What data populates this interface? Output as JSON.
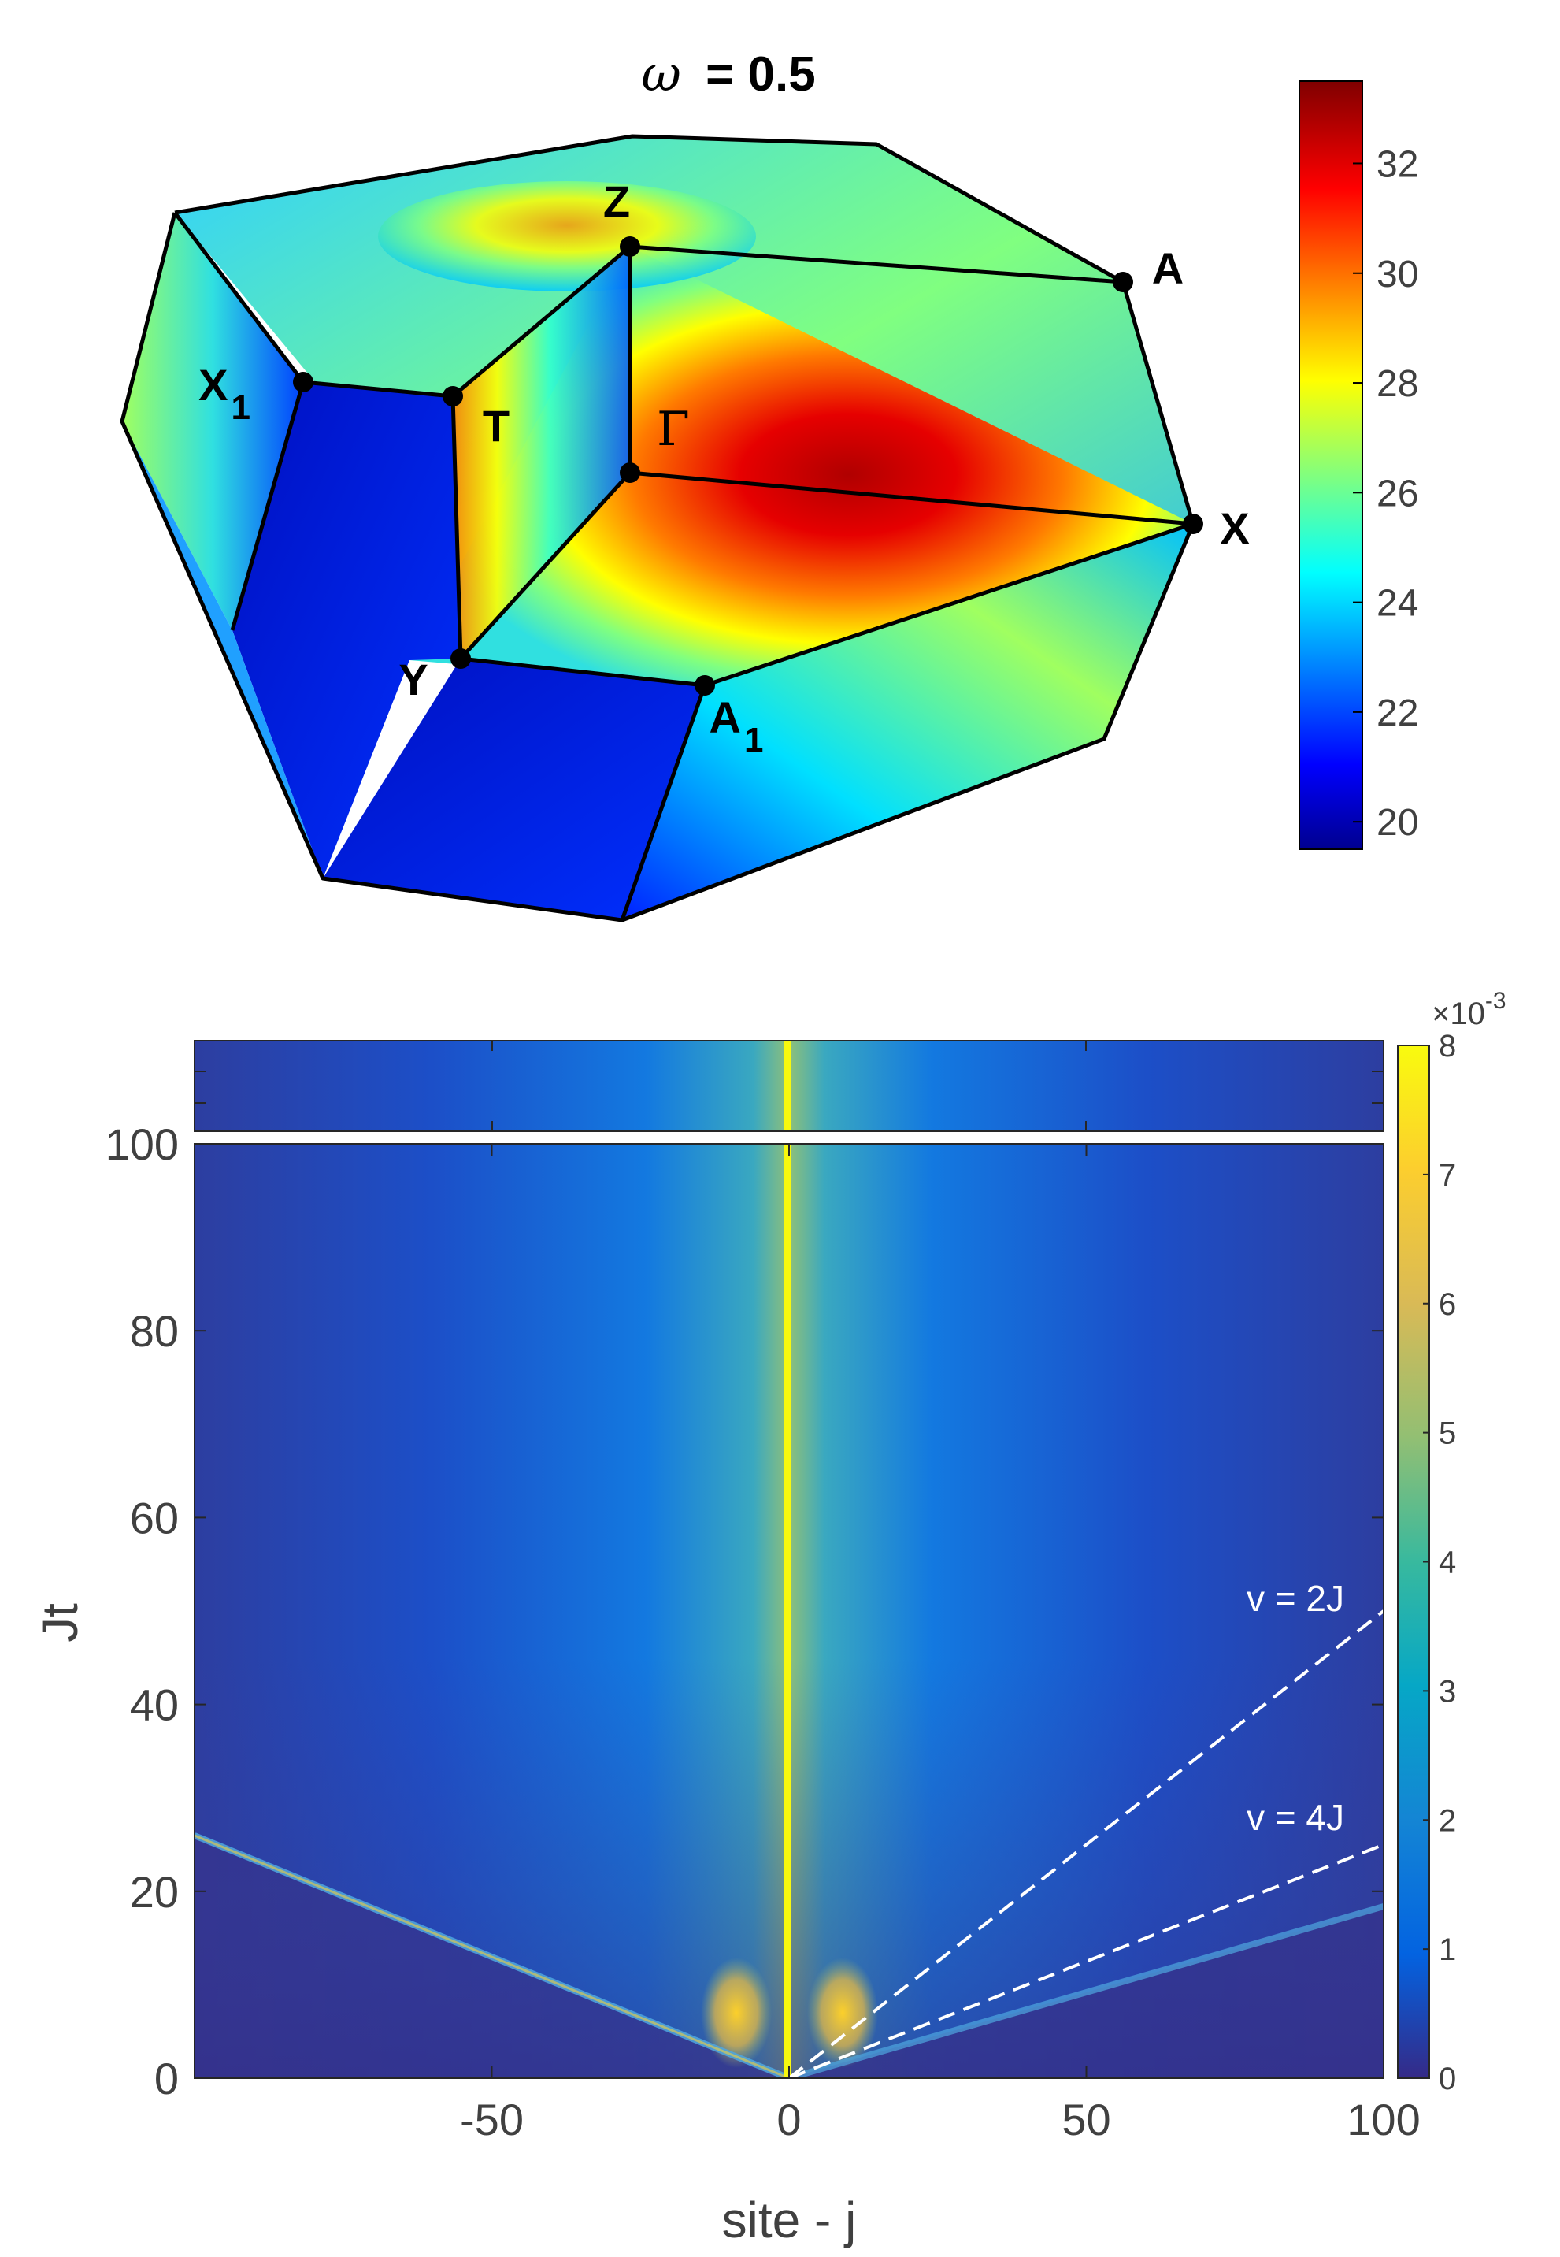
{
  "chart_data": [
    {
      "type": "heatmap",
      "title": "ω = 0.5",
      "title_parts": {
        "symbol": "ω",
        "rest": "= 0.5"
      },
      "colorbar": {
        "colormap": "jet",
        "range": [
          19.5,
          33.5
        ],
        "ticks": [
          "20",
          "22",
          "24",
          "26",
          "28",
          "30",
          "32"
        ]
      },
      "points": [
        {
          "id": "Z",
          "label": "Z"
        },
        {
          "id": "A",
          "label": "A"
        },
        {
          "id": "X1",
          "label": "X",
          "sub": "1"
        },
        {
          "id": "T",
          "label": "T"
        },
        {
          "id": "Gamma",
          "label": "Γ"
        },
        {
          "id": "X",
          "label": "X"
        },
        {
          "id": "Y",
          "label": "Y"
        },
        {
          "id": "A1",
          "label": "A",
          "sub": "1"
        }
      ],
      "path": [
        "Γ",
        "Z",
        "T",
        "Y",
        "Γ",
        "X",
        "A",
        "Z"
      ]
    },
    {
      "type": "heatmap",
      "xlabel": "site - j",
      "ylabel": "Jt",
      "xlim": [
        -100,
        100
      ],
      "ylim": [
        0,
        100
      ],
      "xticks": [
        "-50",
        "0",
        "50",
        "100"
      ],
      "yticks": [
        "0",
        "20",
        "40",
        "60",
        "80",
        "100"
      ],
      "colorbar": {
        "colormap": "parula",
        "range": [
          0,
          8
        ],
        "ticks": [
          "0",
          "1",
          "2",
          "3",
          "4",
          "5",
          "6",
          "7",
          "8"
        ],
        "exponent_label": "×10",
        "exponent": "-3"
      },
      "lines": [
        {
          "label": "v = 2J",
          "x": [
            0,
            100
          ],
          "y": [
            0,
            50
          ],
          "style": "dashed",
          "color": "#ffffff"
        },
        {
          "label": "v = 4J",
          "x": [
            0,
            100
          ],
          "y": [
            0,
            25
          ],
          "style": "dashed",
          "color": "#ffffff"
        }
      ],
      "features": {
        "central_peak_x": 0,
        "inset_strip_above": true
      }
    }
  ]
}
